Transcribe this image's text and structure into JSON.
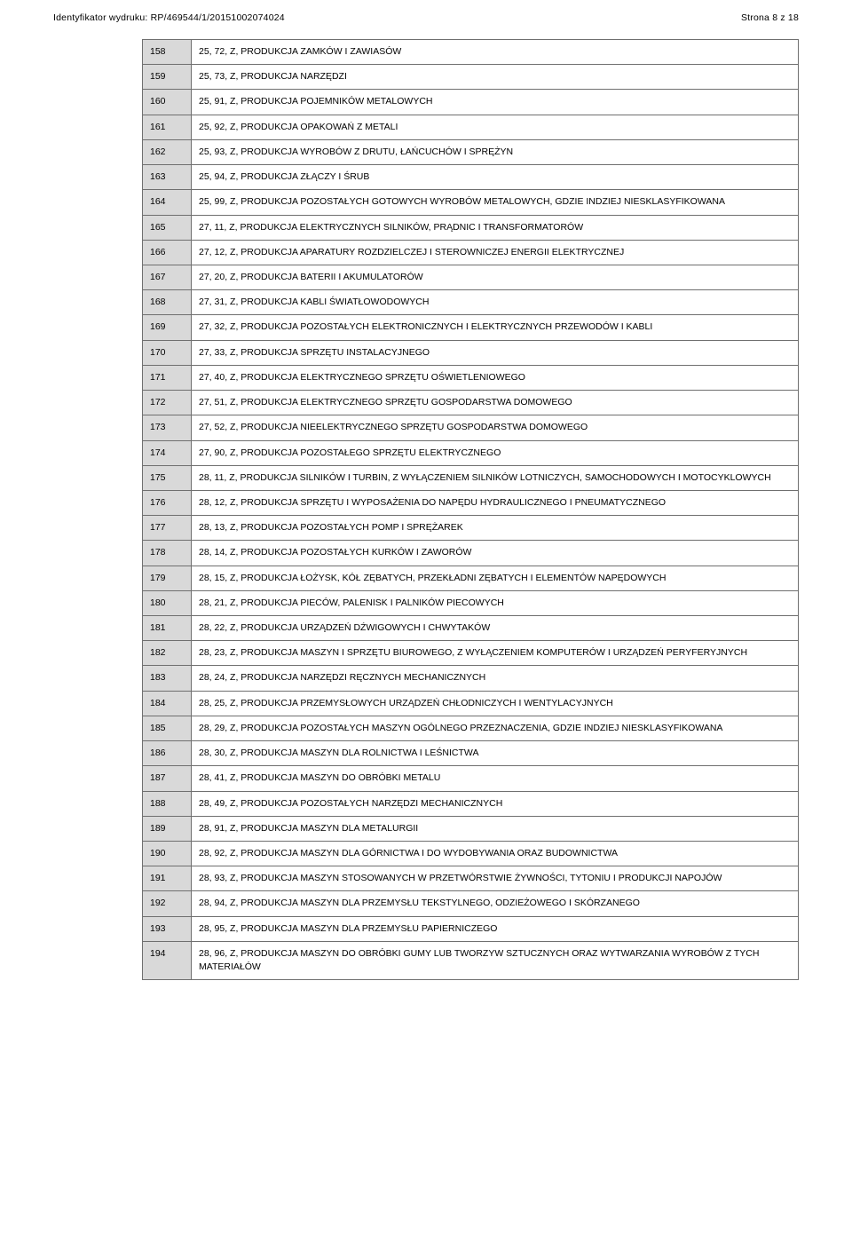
{
  "header": {
    "left": "Identyfikator wydruku: RP/469544/1/20151002074024",
    "right": "Strona 8 z 18"
  },
  "table": {
    "col_widths": {
      "num": 38
    },
    "border_color": "#6f6f6f",
    "num_bg": "#d9d9d9",
    "font_size": 10.5,
    "rows": [
      {
        "n": "158",
        "t": "25, 72, Z, PRODUKCJA ZAMKÓW I ZAWIASÓW"
      },
      {
        "n": "159",
        "t": "25, 73, Z, PRODUKCJA NARZĘDZI"
      },
      {
        "n": "160",
        "t": "25, 91, Z, PRODUKCJA POJEMNIKÓW METALOWYCH"
      },
      {
        "n": "161",
        "t": "25, 92, Z, PRODUKCJA OPAKOWAŃ Z METALI"
      },
      {
        "n": "162",
        "t": "25, 93, Z, PRODUKCJA WYROBÓW Z DRUTU, ŁAŃCUCHÓW I SPRĘŻYN"
      },
      {
        "n": "163",
        "t": "25, 94, Z, PRODUKCJA ZŁĄCZY I ŚRUB"
      },
      {
        "n": "164",
        "t": "25, 99, Z, PRODUKCJA POZOSTAŁYCH GOTOWYCH WYROBÓW METALOWYCH, GDZIE INDZIEJ NIESKLASYFIKOWANA"
      },
      {
        "n": "165",
        "t": "27, 11, Z, PRODUKCJA ELEKTRYCZNYCH SILNIKÓW, PRĄDNIC I TRANSFORMATORÓW"
      },
      {
        "n": "166",
        "t": "27, 12, Z, PRODUKCJA APARATURY ROZDZIELCZEJ I STEROWNICZEJ ENERGII ELEKTRYCZNEJ"
      },
      {
        "n": "167",
        "t": "27, 20, Z, PRODUKCJA BATERII I AKUMULATORÓW"
      },
      {
        "n": "168",
        "t": "27, 31, Z, PRODUKCJA KABLI ŚWIATŁOWODOWYCH"
      },
      {
        "n": "169",
        "t": "27, 32, Z, PRODUKCJA POZOSTAŁYCH ELEKTRONICZNYCH I ELEKTRYCZNYCH PRZEWODÓW I KABLI"
      },
      {
        "n": "170",
        "t": "27, 33, Z, PRODUKCJA SPRZĘTU INSTALACYJNEGO"
      },
      {
        "n": "171",
        "t": "27, 40, Z, PRODUKCJA ELEKTRYCZNEGO SPRZĘTU OŚWIETLENIOWEGO"
      },
      {
        "n": "172",
        "t": "27, 51, Z, PRODUKCJA ELEKTRYCZNEGO SPRZĘTU GOSPODARSTWA DOMOWEGO"
      },
      {
        "n": "173",
        "t": "27, 52, Z, PRODUKCJA NIEELEKTRYCZNEGO SPRZĘTU GOSPODARSTWA DOMOWEGO"
      },
      {
        "n": "174",
        "t": "27, 90, Z, PRODUKCJA POZOSTAŁEGO SPRZĘTU ELEKTRYCZNEGO"
      },
      {
        "n": "175",
        "t": "28, 11, Z, PRODUKCJA SILNIKÓW I TURBIN, Z WYŁĄCZENIEM SILNIKÓW LOTNICZYCH, SAMOCHODOWYCH I MOTOCYKLOWYCH"
      },
      {
        "n": "176",
        "t": "28, 12, Z, PRODUKCJA SPRZĘTU I WYPOSAŻENIA DO NAPĘDU HYDRAULICZNEGO I PNEUMATYCZNEGO"
      },
      {
        "n": "177",
        "t": "28, 13, Z, PRODUKCJA POZOSTAŁYCH POMP I SPRĘŻAREK"
      },
      {
        "n": "178",
        "t": "28, 14, Z, PRODUKCJA POZOSTAŁYCH KURKÓW I ZAWORÓW"
      },
      {
        "n": "179",
        "t": "28, 15, Z, PRODUKCJA ŁOŻYSK, KÓŁ ZĘBATYCH, PRZEKŁADNI ZĘBATYCH I ELEMENTÓW NAPĘDOWYCH"
      },
      {
        "n": "180",
        "t": "28, 21, Z, PRODUKCJA PIECÓW, PALENISK I PALNIKÓW PIECOWYCH"
      },
      {
        "n": "181",
        "t": "28, 22, Z, PRODUKCJA URZĄDZEŃ DŹWIGOWYCH I CHWYTAKÓW"
      },
      {
        "n": "182",
        "t": "28, 23, Z, PRODUKCJA MASZYN I SPRZĘTU BIUROWEGO, Z WYŁĄCZENIEM KOMPUTERÓW I URZĄDZEŃ PERYFERYJNYCH"
      },
      {
        "n": "183",
        "t": "28, 24, Z, PRODUKCJA NARZĘDZI RĘCZNYCH MECHANICZNYCH"
      },
      {
        "n": "184",
        "t": "28, 25, Z, PRODUKCJA PRZEMYSŁOWYCH URZĄDZEŃ CHŁODNICZYCH I WENTYLACYJNYCH"
      },
      {
        "n": "185",
        "t": "28, 29, Z, PRODUKCJA POZOSTAŁYCH MASZYN OGÓLNEGO PRZEZNACZENIA, GDZIE INDZIEJ NIESKLASYFIKOWANA"
      },
      {
        "n": "186",
        "t": "28, 30, Z, PRODUKCJA MASZYN DLA ROLNICTWA I LEŚNICTWA"
      },
      {
        "n": "187",
        "t": "28, 41, Z, PRODUKCJA MASZYN DO OBRÓBKI METALU"
      },
      {
        "n": "188",
        "t": "28, 49, Z, PRODUKCJA POZOSTAŁYCH NARZĘDZI MECHANICZNYCH"
      },
      {
        "n": "189",
        "t": "28, 91, Z, PRODUKCJA MASZYN DLA METALURGII"
      },
      {
        "n": "190",
        "t": "28, 92, Z, PRODUKCJA MASZYN DLA GÓRNICTWA I DO WYDOBYWANIA ORAZ BUDOWNICTWA"
      },
      {
        "n": "191",
        "t": "28, 93, Z, PRODUKCJA MASZYN STOSOWANYCH W PRZETWÓRSTWIE ŻYWNOŚCI, TYTONIU I PRODUKCJI NAPOJÓW"
      },
      {
        "n": "192",
        "t": "28, 94, Z, PRODUKCJA MASZYN DLA PRZEMYSŁU TEKSTYLNEGO, ODZIEŻOWEGO I SKÓRZANEGO"
      },
      {
        "n": "193",
        "t": "28, 95, Z, PRODUKCJA MASZYN DLA PRZEMYSŁU PAPIERNICZEGO"
      },
      {
        "n": "194",
        "t": "28, 96, Z, PRODUKCJA MASZYN DO OBRÓBKI GUMY LUB TWORZYW SZTUCZNYCH ORAZ WYTWARZANIA WYROBÓW Z TYCH MATERIAŁÓW"
      }
    ]
  }
}
